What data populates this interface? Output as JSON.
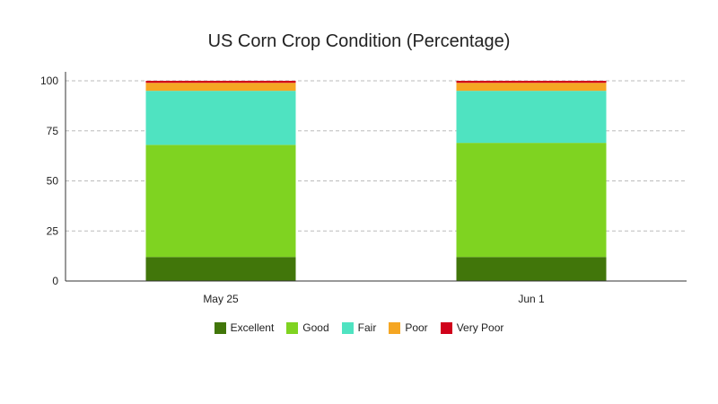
{
  "chart_data": {
    "type": "bar",
    "stacked": true,
    "title": "US Corn Crop Condition (Percentage)",
    "categories": [
      "May 25",
      "Jun 1"
    ],
    "ylim": [
      0,
      100
    ],
    "yticks": [
      0,
      25,
      50,
      75,
      100
    ],
    "grid": true,
    "legend_position": "bottom",
    "series": [
      {
        "name": "Excellent",
        "values": [
          12,
          12
        ],
        "color": "#41760a"
      },
      {
        "name": "Good",
        "values": [
          56,
          57
        ],
        "color": "#7fd321"
      },
      {
        "name": "Fair",
        "values": [
          27,
          26
        ],
        "color": "#4fe3c1"
      },
      {
        "name": "Poor",
        "values": [
          4,
          4
        ],
        "color": "#f5a623"
      },
      {
        "name": "Very Poor",
        "values": [
          1,
          1
        ],
        "color": "#d0021b"
      }
    ]
  }
}
